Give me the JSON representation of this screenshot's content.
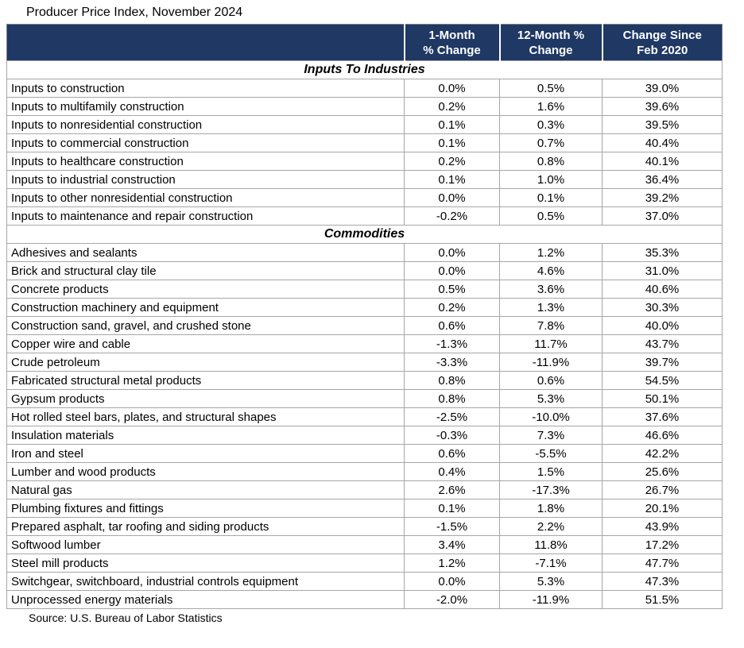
{
  "title": "Producer Price Index, November 2024",
  "source": "Source: U.S. Bureau of Labor Statistics",
  "colors": {
    "header_bg": "#1F3864",
    "header_text": "#FFFFFF",
    "grid": "#A6A6A6",
    "outer_border": "#808080"
  },
  "chart_data": {
    "type": "table",
    "title": "Producer Price Index, November 2024",
    "columns": [
      {
        "id": "item",
        "line1": "",
        "line2": ""
      },
      {
        "id": "one_month",
        "line1": "1-Month",
        "line2": "% Change"
      },
      {
        "id": "twelve_month",
        "line1": "12-Month %",
        "line2": "Change"
      },
      {
        "id": "since_feb_2020",
        "line1": "Change Since",
        "line2": "Feb 2020"
      }
    ],
    "sections": [
      {
        "name": "Inputs To Industries",
        "rows": [
          {
            "label": "Inputs to construction",
            "values": [
              "0.0%",
              "0.5%",
              "39.0%"
            ]
          },
          {
            "label": "Inputs to multifamily construction",
            "values": [
              "0.2%",
              "1.6%",
              "39.6%"
            ]
          },
          {
            "label": "Inputs to nonresidential construction",
            "values": [
              "0.1%",
              "0.3%",
              "39.5%"
            ]
          },
          {
            "label": "Inputs to commercial construction",
            "values": [
              "0.1%",
              "0.7%",
              "40.4%"
            ]
          },
          {
            "label": "Inputs to healthcare construction",
            "values": [
              "0.2%",
              "0.8%",
              "40.1%"
            ]
          },
          {
            "label": "Inputs to industrial construction",
            "values": [
              "0.1%",
              "1.0%",
              "36.4%"
            ]
          },
          {
            "label": "Inputs to other nonresidential construction",
            "values": [
              "0.0%",
              "0.1%",
              "39.2%"
            ]
          },
          {
            "label": "Inputs to maintenance and repair construction",
            "values": [
              "-0.2%",
              "0.5%",
              "37.0%"
            ]
          }
        ]
      },
      {
        "name": "Commodities",
        "rows": [
          {
            "label": "Adhesives and sealants",
            "values": [
              "0.0%",
              "1.2%",
              "35.3%"
            ]
          },
          {
            "label": "Brick and structural clay tile",
            "values": [
              "0.0%",
              "4.6%",
              "31.0%"
            ]
          },
          {
            "label": "Concrete products",
            "values": [
              "0.5%",
              "3.6%",
              "40.6%"
            ]
          },
          {
            "label": "Construction machinery and equipment",
            "values": [
              "0.2%",
              "1.3%",
              "30.3%"
            ]
          },
          {
            "label": "Construction sand, gravel, and crushed stone",
            "values": [
              "0.6%",
              "7.8%",
              "40.0%"
            ]
          },
          {
            "label": "Copper wire and cable",
            "values": [
              "-1.3%",
              "11.7%",
              "43.7%"
            ]
          },
          {
            "label": "Crude petroleum",
            "values": [
              "-3.3%",
              "-11.9%",
              "39.7%"
            ]
          },
          {
            "label": "Fabricated structural metal products",
            "values": [
              "0.8%",
              "0.6%",
              "54.5%"
            ]
          },
          {
            "label": "Gypsum products",
            "values": [
              "0.8%",
              "5.3%",
              "50.1%"
            ]
          },
          {
            "label": "Hot rolled steel bars, plates, and structural shapes",
            "values": [
              "-2.5%",
              "-10.0%",
              "37.6%"
            ]
          },
          {
            "label": "Insulation materials",
            "values": [
              "-0.3%",
              "7.3%",
              "46.6%"
            ]
          },
          {
            "label": "Iron and steel",
            "values": [
              "0.6%",
              "-5.5%",
              "42.2%"
            ]
          },
          {
            "label": "Lumber and wood products",
            "values": [
              "0.4%",
              "1.5%",
              "25.6%"
            ]
          },
          {
            "label": "Natural gas",
            "values": [
              "2.6%",
              "-17.3%",
              "26.7%"
            ]
          },
          {
            "label": "Plumbing fixtures and fittings",
            "values": [
              "0.1%",
              "1.8%",
              "20.1%"
            ]
          },
          {
            "label": "Prepared asphalt, tar roofing and siding products",
            "values": [
              "-1.5%",
              "2.2%",
              "43.9%"
            ]
          },
          {
            "label": "Softwood lumber",
            "values": [
              "3.4%",
              "11.8%",
              "17.2%"
            ]
          },
          {
            "label": "Steel mill products",
            "values": [
              "1.2%",
              "-7.1%",
              "47.7%"
            ]
          },
          {
            "label": "Switchgear, switchboard, industrial controls equipment",
            "values": [
              "0.0%",
              "5.3%",
              "47.3%"
            ]
          },
          {
            "label": "Unprocessed energy materials",
            "values": [
              "-2.0%",
              "-11.9%",
              "51.5%"
            ]
          }
        ]
      }
    ]
  }
}
